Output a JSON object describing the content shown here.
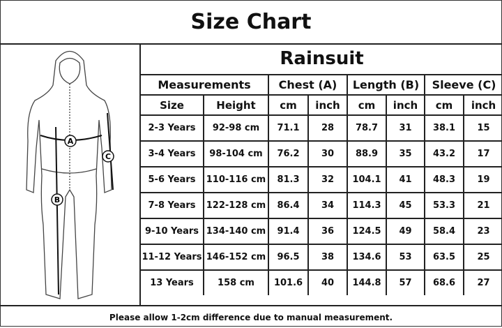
{
  "title": "Size Chart",
  "product": "Rainsuit",
  "group_headers": [
    "Measurements",
    "Chest (A)",
    "Length (B)",
    "Sleeve (C)"
  ],
  "sub_headers": [
    "Size",
    "Height",
    "cm",
    "inch",
    "cm",
    "inch",
    "cm",
    "inch"
  ],
  "figure_labels": {
    "a": "A",
    "b": "B",
    "c": "C"
  },
  "rows": [
    [
      "2-3 Years",
      "92-98 cm",
      "71.1",
      "28",
      "78.7",
      "31",
      "38.1",
      "15"
    ],
    [
      "3-4 Years",
      "98-104 cm",
      "76.2",
      "30",
      "88.9",
      "35",
      "43.2",
      "17"
    ],
    [
      "5-6 Years",
      "110-116 cm",
      "81.3",
      "32",
      "104.1",
      "41",
      "48.3",
      "19"
    ],
    [
      "7-8 Years",
      "122-128 cm",
      "86.4",
      "34",
      "114.3",
      "45",
      "53.3",
      "21"
    ],
    [
      "9-10 Years",
      "134-140 cm",
      "91.4",
      "36",
      "124.5",
      "49",
      "58.4",
      "23"
    ],
    [
      "11-12 Years",
      "146-152 cm",
      "96.5",
      "38",
      "134.6",
      "53",
      "63.5",
      "25"
    ],
    [
      "13 Years",
      "158 cm",
      "101.6",
      "40",
      "144.8",
      "57",
      "68.6",
      "27"
    ]
  ],
  "footer": "Please allow 1-2cm difference due to manual measurement."
}
